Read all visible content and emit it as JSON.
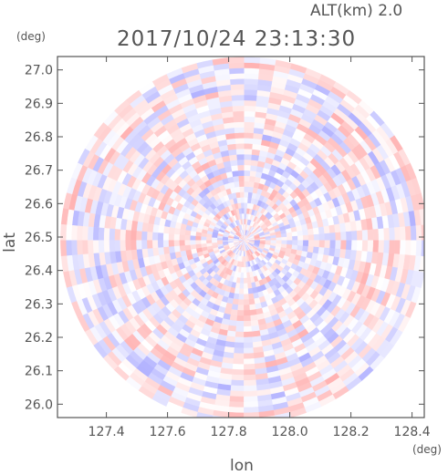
{
  "header": {
    "altitude_label": "ALT(km)  2.0",
    "timestamp": "2017/10/24 23:13:30"
  },
  "chart_data": {
    "type": "heatmap",
    "title": "2017/10/24 23:13:30",
    "xlabel": "lon",
    "ylabel": "lat",
    "x_unit": "(deg)",
    "y_unit": "(deg)",
    "xlim": [
      127.24,
      128.44
    ],
    "ylim": [
      25.96,
      27.04
    ],
    "xticks": [
      127.4,
      127.6,
      127.8,
      128.0,
      128.2,
      128.4
    ],
    "xtick_labels": [
      "127.4",
      "127.6",
      "127.8",
      "128.0",
      "128.2",
      "128.4"
    ],
    "yticks": [
      26.0,
      26.1,
      26.2,
      26.3,
      26.4,
      26.5,
      26.6,
      26.7,
      26.8,
      26.9,
      27.0
    ],
    "ytick_labels": [
      "26.0",
      "26.1",
      "26.2",
      "26.3",
      "26.4",
      "26.5",
      "26.6",
      "26.7",
      "26.8",
      "26.9",
      "27.0"
    ],
    "center": {
      "lon": 127.85,
      "lat": 26.49
    },
    "range_lon": 0.6,
    "colormap": {
      "negative": "#9999ff",
      "zero": "#ffffff",
      "positive": "#ff9999"
    },
    "grid": false
  }
}
